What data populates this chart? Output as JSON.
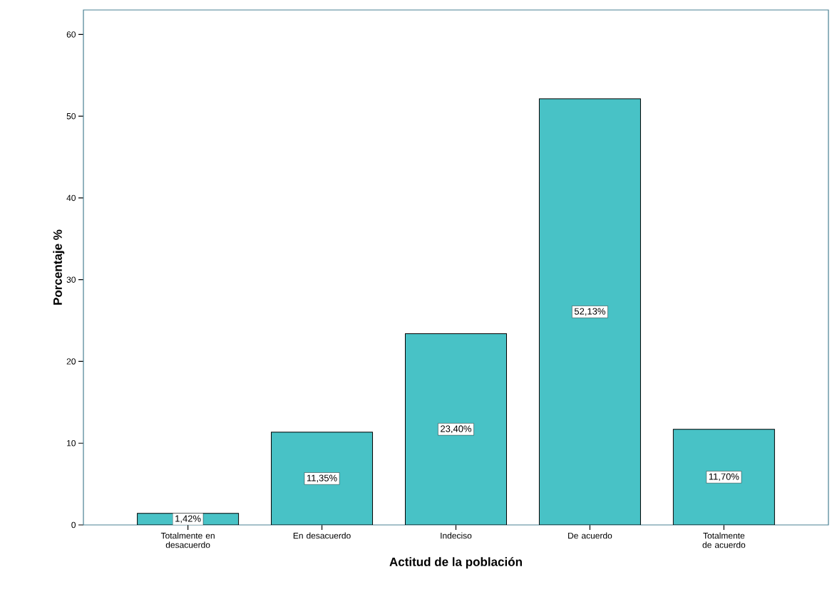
{
  "chart_data": {
    "type": "bar",
    "xlabel": "Actitud de la población",
    "ylabel": "Porcentaje %",
    "categories": [
      "Totalmente en desacuerdo",
      "En desacuerdo",
      "Indeciso",
      "De acuerdo",
      "Totalmente de acuerdo"
    ],
    "values": [
      1.42,
      11.35,
      23.4,
      52.13,
      11.7
    ],
    "value_labels": [
      "1,42%",
      "11,35%",
      "23,40%",
      "52,13%",
      "11,70%"
    ],
    "color": "#48c2c6",
    "ylim": [
      0,
      63
    ],
    "yticks": [
      0,
      10,
      20,
      30,
      40,
      50,
      60
    ]
  }
}
